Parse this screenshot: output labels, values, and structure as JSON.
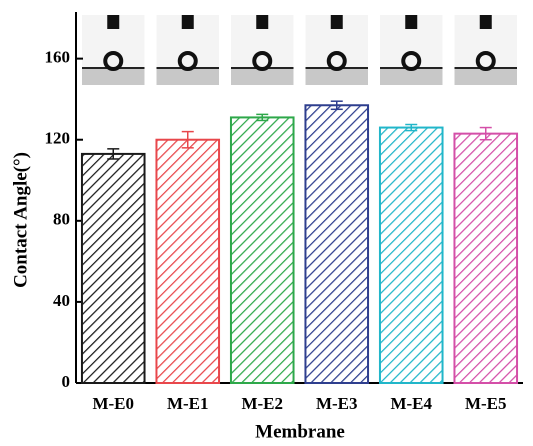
{
  "chart_data": {
    "type": "bar",
    "x_label": "Membrane",
    "y_label": "Contact Angle(°)",
    "categories": [
      "M-E0",
      "M-E1",
      "M-E2",
      "M-E3",
      "M-E4",
      "M-E5"
    ],
    "values": [
      113,
      120,
      131,
      137,
      126,
      123
    ],
    "errors": [
      2.5,
      4,
      1.5,
      2,
      1.5,
      3
    ],
    "colors": [
      "#1a1a1a",
      "#e8474b",
      "#2ea84a",
      "#2e3e8e",
      "#21b6c9",
      "#d44fa8"
    ],
    "hatch": true,
    "ylim": [
      0,
      183
    ],
    "yticks": [
      0,
      40,
      80,
      120,
      160
    ]
  }
}
